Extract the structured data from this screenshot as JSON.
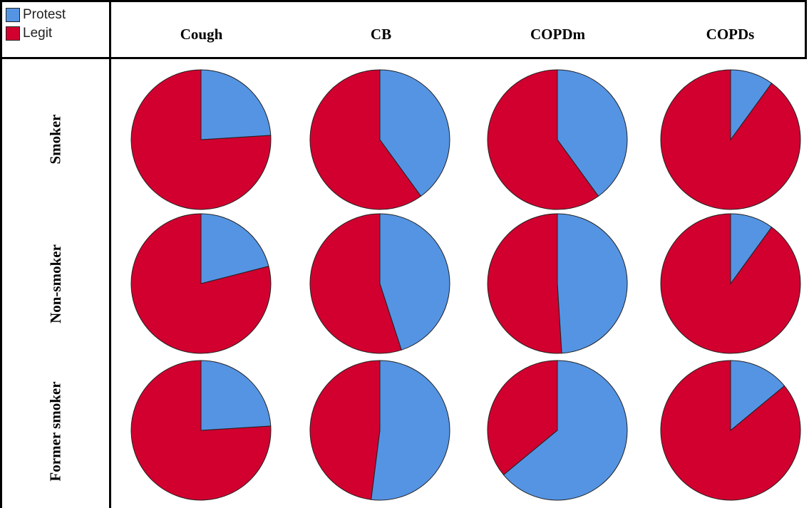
{
  "legend": [
    {
      "label": "Protest",
      "color": "#5594e3"
    },
    {
      "label": "Legit",
      "color": "#d1002f"
    }
  ],
  "chart_data": {
    "type": "pie",
    "columns": [
      "Cough",
      "CB",
      "COPDm",
      "COPDs"
    ],
    "rows": [
      "Smoker",
      "Non-smoker",
      "Former smoker"
    ],
    "series": [
      {
        "name": "Protest",
        "color": "#5594e3"
      },
      {
        "name": "Legit",
        "color": "#d1002f"
      }
    ],
    "protest_fraction": [
      [
        0.24,
        0.4,
        0.4,
        0.1
      ],
      [
        0.21,
        0.45,
        0.49,
        0.1
      ],
      [
        0.24,
        0.52,
        0.64,
        0.14
      ]
    ]
  }
}
